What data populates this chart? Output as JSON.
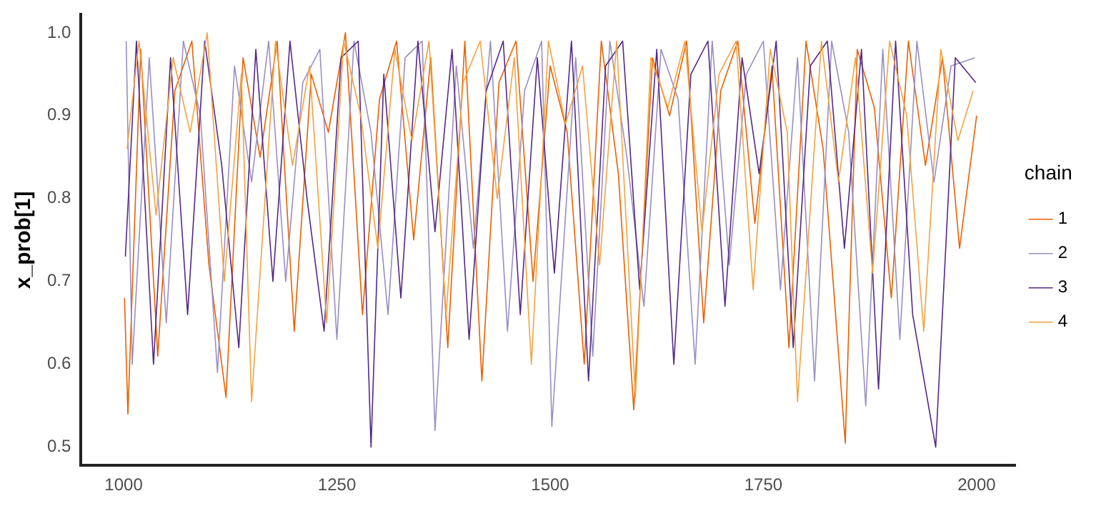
{
  "chart_data": {
    "type": "line",
    "ylabel": "x_prob[1]",
    "legend_title": "chain",
    "legend": "right",
    "grid": false,
    "marker": "none",
    "line_style": "solid",
    "xlim": [
      950,
      2045
    ],
    "xticks": [
      1000,
      1250,
      1500,
      1750,
      2000
    ],
    "ylim": [
      0.478,
      1.022
    ],
    "yticks": [
      {
        "value": 0.5,
        "label": "0.5"
      },
      {
        "value": 0.6,
        "label": "0.6"
      },
      {
        "value": 0.7,
        "label": "0.7"
      },
      {
        "value": 0.8,
        "label": "0.8"
      },
      {
        "value": 0.9,
        "label": "0.9"
      },
      {
        "value": 1.0,
        "label": "1.0"
      }
    ],
    "series": [
      {
        "name": "1",
        "color": "#e66101",
        "x": [
          1001,
          1005,
          1020,
          1040,
          1060,
          1080,
          1100,
          1120,
          1140,
          1160,
          1180,
          1200,
          1220,
          1240,
          1260,
          1280,
          1300,
          1320,
          1340,
          1360,
          1380,
          1400,
          1420,
          1440,
          1460,
          1480,
          1500,
          1520,
          1540,
          1560,
          1580,
          1598,
          1620,
          1640,
          1660,
          1680,
          1700,
          1720,
          1740,
          1760,
          1780,
          1800,
          1820,
          1846,
          1860,
          1880,
          1900,
          1920,
          1940,
          1960,
          1980,
          2000
        ],
        "values": [
          0.68,
          0.54,
          0.98,
          0.61,
          0.93,
          0.99,
          0.72,
          0.56,
          0.97,
          0.85,
          0.99,
          0.64,
          0.95,
          0.88,
          1.0,
          0.66,
          0.92,
          0.99,
          0.75,
          0.97,
          0.62,
          0.99,
          0.58,
          0.94,
          0.99,
          0.7,
          0.96,
          0.88,
          0.6,
          0.99,
          0.83,
          0.545,
          0.97,
          0.9,
          0.99,
          0.65,
          0.93,
          0.99,
          0.77,
          0.96,
          0.62,
          0.99,
          0.86,
          0.505,
          0.98,
          0.91,
          0.68,
          0.99,
          0.84,
          0.97,
          0.74,
          0.9
        ]
      },
      {
        "name": "2",
        "color": "#998ec3",
        "x": [
          1003,
          1010,
          1030,
          1050,
          1070,
          1090,
          1110,
          1130,
          1150,
          1170,
          1190,
          1210,
          1230,
          1250,
          1270,
          1290,
          1310,
          1330,
          1350,
          1365,
          1390,
          1410,
          1430,
          1450,
          1470,
          1490,
          1502,
          1530,
          1550,
          1570,
          1590,
          1610,
          1630,
          1650,
          1670,
          1690,
          1710,
          1730,
          1750,
          1770,
          1790,
          1810,
          1830,
          1850,
          1870,
          1890,
          1910,
          1930,
          1950,
          1970,
          1998
        ],
        "values": [
          0.99,
          0.6,
          0.97,
          0.65,
          0.99,
          0.9,
          0.59,
          0.96,
          0.82,
          0.99,
          0.7,
          0.94,
          0.98,
          0.63,
          0.99,
          0.88,
          0.66,
          0.97,
          0.99,
          0.52,
          0.96,
          0.74,
          0.99,
          0.64,
          0.93,
          0.99,
          0.525,
          0.97,
          0.61,
          0.99,
          0.85,
          0.67,
          0.98,
          0.92,
          0.6,
          0.99,
          0.72,
          0.95,
          0.99,
          0.69,
          0.97,
          0.58,
          0.99,
          0.88,
          0.55,
          0.98,
          0.63,
          0.99,
          0.82,
          0.96,
          0.97
        ]
      },
      {
        "name": "3",
        "color": "#542788",
        "x": [
          1002,
          1015,
          1035,
          1055,
          1075,
          1095,
          1115,
          1135,
          1155,
          1175,
          1195,
          1215,
          1235,
          1255,
          1275,
          1290,
          1305,
          1325,
          1345,
          1365,
          1385,
          1405,
          1425,
          1445,
          1465,
          1485,
          1505,
          1525,
          1545,
          1565,
          1585,
          1605,
          1625,
          1645,
          1665,
          1685,
          1705,
          1725,
          1745,
          1765,
          1785,
          1805,
          1825,
          1845,
          1865,
          1885,
          1905,
          1925,
          1952,
          1975,
          1999
        ],
        "values": [
          0.73,
          0.99,
          0.6,
          0.97,
          0.66,
          0.99,
          0.84,
          0.62,
          0.98,
          0.7,
          0.99,
          0.8,
          0.64,
          0.97,
          0.99,
          0.5,
          0.95,
          0.68,
          0.99,
          0.76,
          0.98,
          0.63,
          0.93,
          0.99,
          0.66,
          0.97,
          0.71,
          0.99,
          0.58,
          0.96,
          0.99,
          0.69,
          0.98,
          0.6,
          0.95,
          0.99,
          0.67,
          0.97,
          0.83,
          0.99,
          0.62,
          0.96,
          0.99,
          0.74,
          0.98,
          0.57,
          0.99,
          0.66,
          0.5,
          0.97,
          0.94
        ]
      },
      {
        "name": "4",
        "color": "#f1a340",
        "x": [
          1004,
          1018,
          1038,
          1058,
          1078,
          1098,
          1118,
          1138,
          1150,
          1178,
          1198,
          1218,
          1238,
          1258,
          1278,
          1298,
          1318,
          1338,
          1358,
          1378,
          1398,
          1418,
          1438,
          1458,
          1478,
          1498,
          1518,
          1538,
          1558,
          1578,
          1600,
          1618,
          1638,
          1658,
          1678,
          1698,
          1718,
          1738,
          1758,
          1778,
          1790,
          1818,
          1838,
          1858,
          1878,
          1898,
          1918,
          1938,
          1958,
          1978,
          1996
        ],
        "values": [
          0.86,
          0.99,
          0.78,
          0.97,
          0.88,
          1.0,
          0.7,
          0.95,
          0.555,
          0.99,
          0.84,
          0.96,
          0.65,
          0.99,
          0.9,
          0.74,
          0.98,
          0.87,
          0.99,
          0.66,
          0.94,
          0.99,
          0.8,
          0.97,
          0.6,
          0.99,
          0.89,
          0.96,
          0.72,
          0.99,
          0.56,
          0.97,
          0.91,
          0.99,
          0.76,
          0.95,
          0.99,
          0.69,
          0.98,
          0.88,
          0.555,
          0.99,
          0.82,
          0.97,
          0.71,
          0.99,
          0.9,
          0.64,
          0.98,
          0.87,
          0.93
        ]
      }
    ]
  }
}
